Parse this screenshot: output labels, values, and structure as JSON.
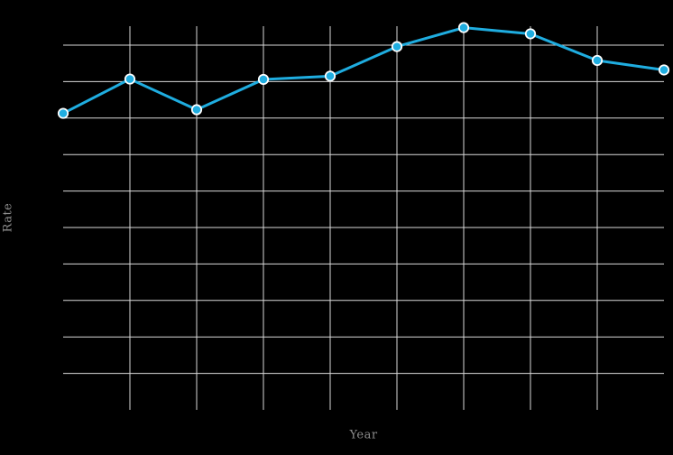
{
  "figure": {
    "background_color": "#000000",
    "grid_color": "#d9d9d9",
    "line_color": "#1fade0",
    "marker_fill_color": "#1fade0",
    "marker_edge_color": "#ffffff",
    "axis_label_color": "#8c8c8c"
  },
  "chart_data": {
    "type": "line",
    "title": "",
    "xlabel": "Year",
    "ylabel": "Rate",
    "x": [
      1,
      2,
      3,
      4,
      5,
      6,
      7,
      8,
      9,
      10
    ],
    "values": [
      8.13,
      9.07,
      8.23,
      9.06,
      9.15,
      9.96,
      10.48,
      10.31,
      9.58,
      9.32
    ],
    "xlim": [
      1,
      10
    ],
    "ylim": [
      0,
      10.53
    ],
    "x_tick_labels": [],
    "y_tick_labels": [],
    "grid": "on",
    "h_gridline_values": [
      1,
      2,
      3,
      4,
      5,
      6,
      7,
      8,
      9,
      10
    ],
    "v_gridlines_at_interior_points": true,
    "legend": "none",
    "series_count": 1
  }
}
